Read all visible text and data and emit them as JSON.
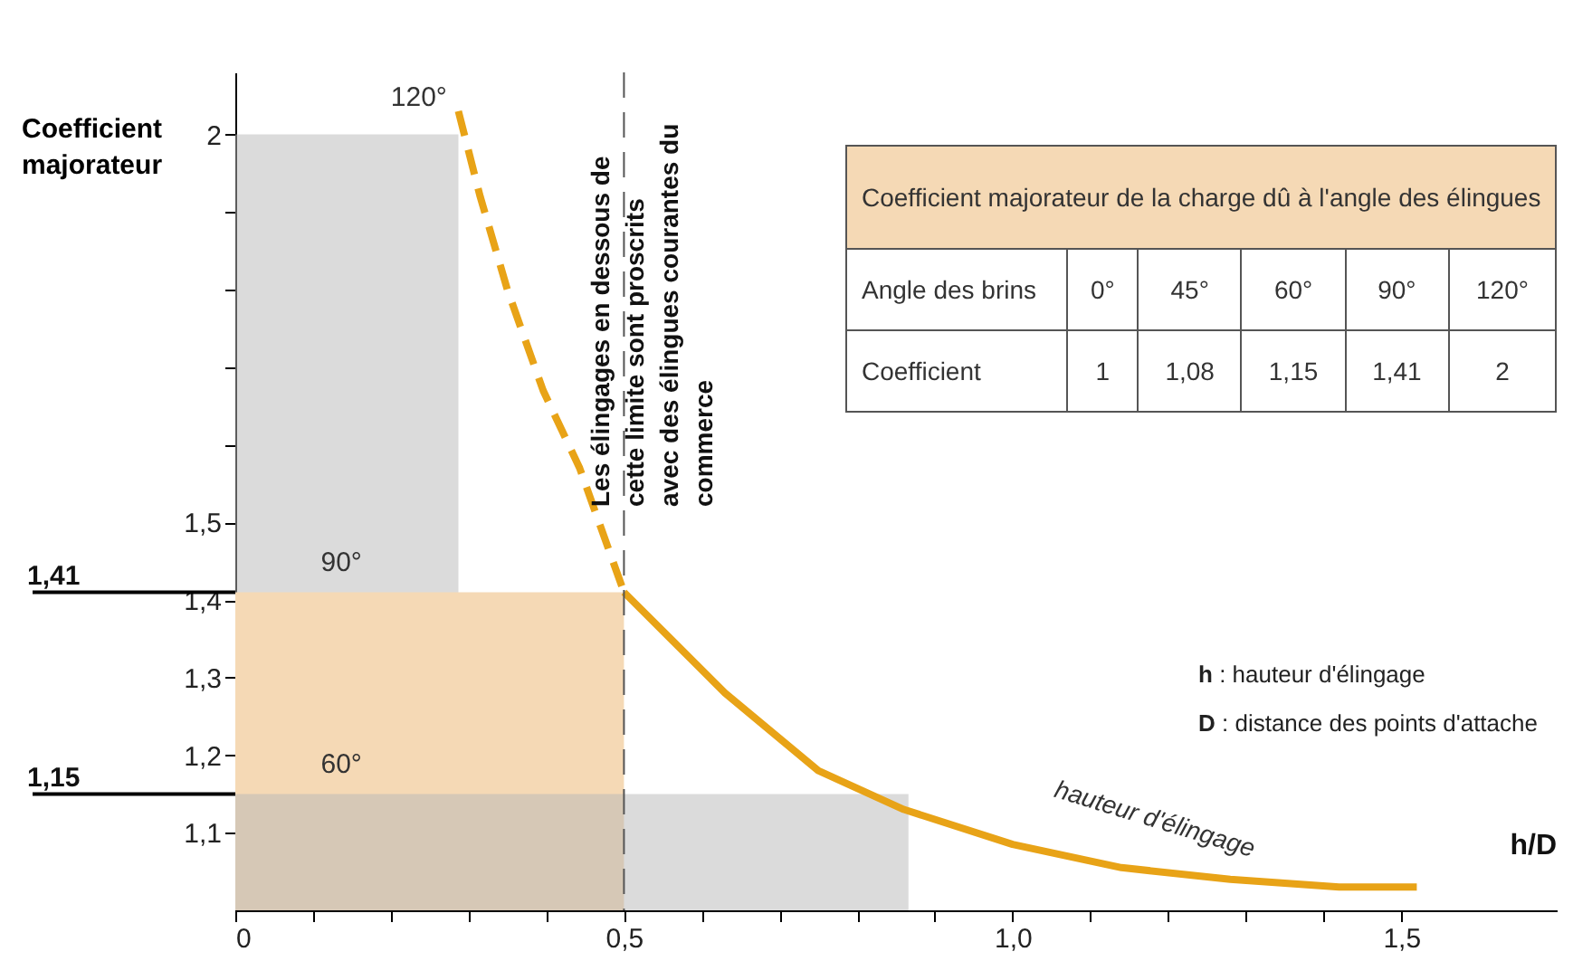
{
  "chart_data": [
    {
      "type": "line",
      "xlabel": "h/D",
      "ylabel": "Coefficient majorateur",
      "xlim": [
        0,
        1.7
      ],
      "ylim": [
        1,
        2.08
      ],
      "xticks": [
        {
          "value": 0,
          "label": "0"
        },
        {
          "value": 0.1,
          "label": null
        },
        {
          "value": 0.2,
          "label": null
        },
        {
          "value": 0.3,
          "label": null
        },
        {
          "value": 0.4,
          "label": null
        },
        {
          "value": 0.5,
          "label": "0,5"
        },
        {
          "value": 0.6,
          "label": null
        },
        {
          "value": 0.7,
          "label": null
        },
        {
          "value": 0.8,
          "label": null
        },
        {
          "value": 0.9,
          "label": null
        },
        {
          "value": 1.0,
          "label": "1,0"
        },
        {
          "value": 1.1,
          "label": null
        },
        {
          "value": 1.2,
          "label": null
        },
        {
          "value": 1.3,
          "label": null
        },
        {
          "value": 1.4,
          "label": null
        },
        {
          "value": 1.5,
          "label": "1,5"
        }
      ],
      "yticks": [
        {
          "value": 1.1,
          "label": "1,1"
        },
        {
          "value": 1.2,
          "label": "1,2"
        },
        {
          "value": 1.3,
          "label": "1,3"
        },
        {
          "value": 1.4,
          "label": "1,4"
        },
        {
          "value": 1.5,
          "label": "1,5"
        },
        {
          "value": 1.6,
          "label": null
        },
        {
          "value": 1.7,
          "label": null
        },
        {
          "value": 1.8,
          "label": null
        },
        {
          "value": 1.9,
          "label": null
        },
        {
          "value": 2,
          "label": "2"
        }
      ],
      "series": [
        {
          "type": "area",
          "color": "#b8b8b8",
          "x": [
            0,
            0.287
          ],
          "values": [
            2,
            2
          ]
        },
        {
          "type": "area",
          "color": "#f5d9b5",
          "x": [
            0,
            0.5
          ],
          "values": [
            1.41,
            1.41
          ]
        },
        {
          "type": "area",
          "color": "#b8b8b8",
          "x": [
            0,
            0.866
          ],
          "values": [
            1.15,
            1.15
          ]
        },
        {
          "type": "line",
          "color": "#e8a317",
          "line_style": "dashed",
          "x": [
            0.287,
            0.315,
            0.35,
            0.396,
            0.443,
            0.5
          ],
          "values": [
            2.03,
            1.92,
            1.8,
            1.67,
            1.57,
            1.41
          ]
        },
        {
          "type": "line",
          "color": "#e8a317",
          "line_style": "solid",
          "x": [
            0.5,
            0.56,
            0.63,
            0.75,
            0.86,
            1.0,
            1.14,
            1.28,
            1.42,
            1.52
          ],
          "values": [
            1.41,
            1.35,
            1.28,
            1.18,
            1.13,
            1.085,
            1.055,
            1.04,
            1.03,
            1.03
          ]
        }
      ],
      "ref_lines": [
        {
          "axis": "y",
          "value": 1.41,
          "label": "1,41"
        },
        {
          "axis": "y",
          "value": 1.15,
          "label": "1,15"
        },
        {
          "axis": "x",
          "value": 0.5,
          "label": "Les élingages en dessous de cette limite sont proscrits avec des élingues courantes du commerce",
          "line_style": "dashed",
          "color": "#555555"
        }
      ],
      "annotations": [
        "120°",
        "90°",
        "60°",
        "hauteur d'élingage",
        "h : hauteur d'élingage",
        "D : distance des points d'attache"
      ],
      "marker": "none",
      "grid": false
    },
    {
      "type": "other",
      "title": "Coefficient majorateur de la charge dû à l'angle des élingues",
      "xlabel": "Angle des brins",
      "ylabel": "Coefficient",
      "categories": [
        "0°",
        "45°",
        "60°",
        "90°",
        "120°"
      ],
      "value_labels": [
        "1",
        "1,08",
        "1,15",
        "1,41",
        "2"
      ]
    }
  ]
}
